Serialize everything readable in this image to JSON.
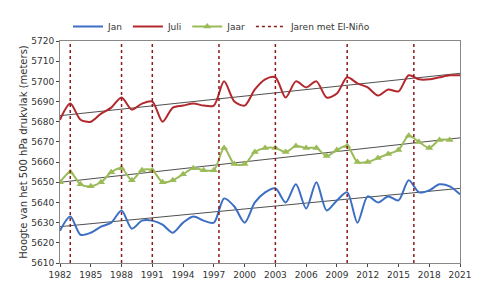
{
  "chart_data": {
    "type": "line",
    "y_label": "Hoogte van het 500 hPa drukvlak (meters)",
    "x": [
      1982,
      1983,
      1984,
      1985,
      1986,
      1987,
      1988,
      1989,
      1990,
      1991,
      1992,
      1993,
      1994,
      1995,
      1996,
      1997,
      1998,
      1999,
      2000,
      2001,
      2002,
      2003,
      2004,
      2005,
      2006,
      2007,
      2008,
      2009,
      2010,
      2011,
      2012,
      2013,
      2014,
      2015,
      2016,
      2017,
      2018,
      2019,
      2020,
      2021
    ],
    "series": [
      {
        "name": "Jan",
        "color": "#3c6fc4",
        "line_style": "solid",
        "marker": "none",
        "values": [
          5626,
          5633,
          5624,
          5625,
          5628,
          5630,
          5636,
          5627,
          5631,
          5631,
          5629,
          5625,
          5630,
          5633,
          5631,
          5630,
          5642,
          5638,
          5630,
          5640,
          5645,
          5647,
          5640,
          5649,
          5637,
          5650,
          5636,
          5641,
          5645,
          5630,
          5643,
          5640,
          5643,
          5641,
          5651,
          5645,
          5646,
          5649,
          5648,
          5644
        ],
        "trend": [
          5628,
          5647
        ]
      },
      {
        "name": "Juli",
        "color": "#b3282d",
        "line_style": "solid",
        "marker": "none",
        "values": [
          5681,
          5689,
          5681,
          5680,
          5684,
          5687,
          5692,
          5686,
          5689,
          5690,
          5680,
          5687,
          5688,
          5689,
          5688,
          5688,
          5700,
          5690,
          5688,
          5696,
          5701,
          5702,
          5692,
          5700,
          5697,
          5700,
          5692,
          5694,
          5702,
          5699,
          5697,
          5693,
          5696,
          5695,
          5703,
          5701,
          5701,
          5702,
          5703,
          5703
        ],
        "trend": [
          5683,
          5704
        ]
      },
      {
        "name": "Jaar",
        "color": "#9bbb59",
        "line_style": "solid",
        "marker": "triangle",
        "values": [
          5650,
          5655,
          5649,
          5648,
          5650,
          5655,
          5657,
          5651,
          5656,
          5656,
          5650,
          5651,
          5654,
          5657,
          5656,
          5656,
          5667,
          5659,
          5659,
          5665,
          5667,
          5667,
          5665,
          5668,
          5667,
          5667,
          5663,
          5666,
          5668,
          5660,
          5660,
          5662,
          5664,
          5666,
          5673,
          5670,
          5667,
          5671,
          5671,
          null
        ],
        "trend": [
          5650,
          5672
        ]
      }
    ],
    "vlines": {
      "name": "Jaren met El-Niño",
      "color": "#8b1a1a",
      "line_style": "dotted",
      "x": [
        1983,
        1988,
        1991,
        1997.5,
        2003,
        2010,
        2016.5
      ]
    },
    "xlim": [
      1982,
      2021
    ],
    "xticks": [
      1982,
      1985,
      1988,
      1991,
      1994,
      1997,
      2000,
      2003,
      2006,
      2009,
      2012,
      2015,
      2018,
      2021
    ],
    "ylim": [
      5610,
      5720
    ],
    "yticks": [
      5610,
      5620,
      5630,
      5640,
      5650,
      5660,
      5670,
      5680,
      5690,
      5700,
      5710,
      5720
    ],
    "grid": false,
    "legend": "top"
  }
}
